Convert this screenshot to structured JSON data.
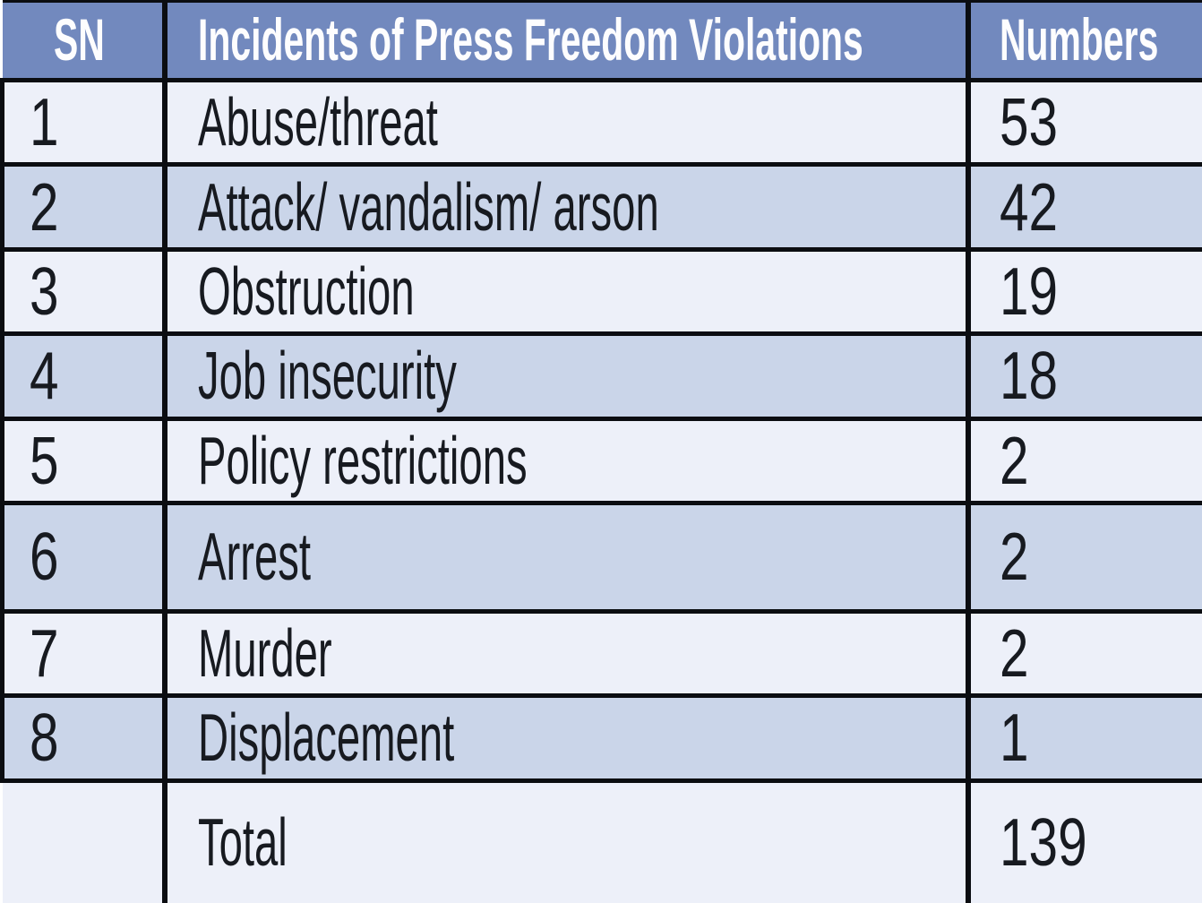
{
  "table": {
    "columns": [
      "SN",
      "Incidents of Press Freedom Violations",
      "Numbers"
    ],
    "rows": [
      {
        "sn": "1",
        "incident": "Abuse/threat",
        "number": "53"
      },
      {
        "sn": "2",
        "incident": "Attack/ vandalism/ arson",
        "number": "42"
      },
      {
        "sn": "3",
        "incident": "Obstruction",
        "number": "19"
      },
      {
        "sn": "4",
        "incident": "Job insecurity",
        "number": "18"
      },
      {
        "sn": "5",
        "incident": "Policy restrictions",
        "number": "2"
      },
      {
        "sn": "6",
        "incident": "Arrest",
        "number": "2"
      },
      {
        "sn": "7",
        "incident": "Murder",
        "number": "2"
      },
      {
        "sn": "8",
        "incident": "Displacement",
        "number": "1"
      }
    ],
    "total": {
      "label": "Total",
      "value": "139"
    }
  },
  "colors": {
    "header_bg": "#7289BE",
    "header_text": "#FDFDFE",
    "row_light": "#EDF0F9",
    "row_shade": "#CAD5E9",
    "border": "#0B0D11",
    "body_text": "#171A20"
  }
}
